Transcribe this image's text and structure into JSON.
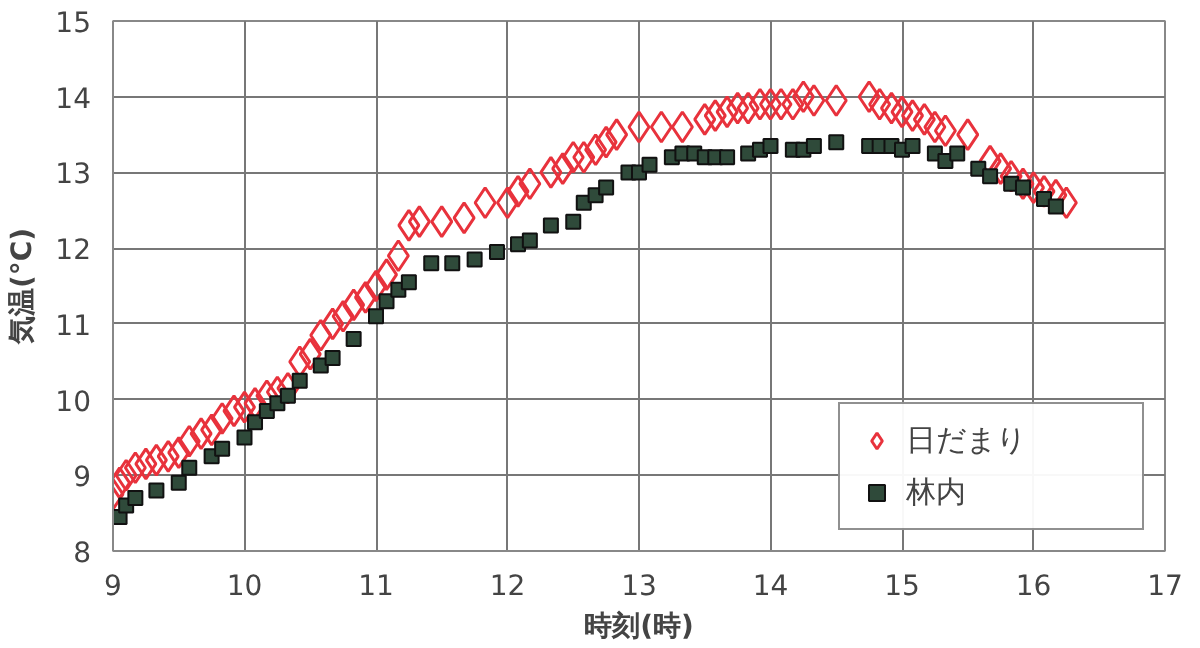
{
  "chart_data": {
    "type": "scatter",
    "xlabel": "時刻(時)",
    "ylabel": "気温(°C)",
    "xlim": [
      9,
      17
    ],
    "xticks": [
      9,
      10,
      11,
      12,
      13,
      14,
      15,
      16,
      17
    ],
    "ylim": [
      8,
      15
    ],
    "yticks": [
      8,
      9,
      10,
      11,
      12,
      13,
      14,
      15
    ],
    "grid": true,
    "legend": "bottom right",
    "series": [
      {
        "name": "日だまり",
        "color": "#e8323c",
        "marker": "diamond",
        "x": [
          9.0,
          9.05,
          9.1,
          9.17,
          9.25,
          9.33,
          9.42,
          9.5,
          9.58,
          9.67,
          9.75,
          9.83,
          9.92,
          10.0,
          10.08,
          10.17,
          10.25,
          10.33,
          10.42,
          10.5,
          10.58,
          10.67,
          10.75,
          10.83,
          10.92,
          11.0,
          11.08,
          11.17,
          11.25,
          11.33,
          11.5,
          11.67,
          11.83,
          12.0,
          12.08,
          12.17,
          12.33,
          12.42,
          12.5,
          12.58,
          12.67,
          12.75,
          12.83,
          13.0,
          13.17,
          13.33,
          13.5,
          13.58,
          13.67,
          13.75,
          13.83,
          13.92,
          14.0,
          14.08,
          14.17,
          14.25,
          14.33,
          14.5,
          14.75,
          14.83,
          14.92,
          15.0,
          15.08,
          15.17,
          15.25,
          15.33,
          15.5,
          15.67,
          15.75,
          15.83,
          15.92,
          16.0,
          16.08,
          16.17,
          16.25
        ],
        "values": [
          8.75,
          8.9,
          9.0,
          9.1,
          9.15,
          9.2,
          9.25,
          9.3,
          9.45,
          9.55,
          9.6,
          9.75,
          9.85,
          9.9,
          9.95,
          10.05,
          10.1,
          10.15,
          10.5,
          10.6,
          10.85,
          11.0,
          11.1,
          11.25,
          11.35,
          11.5,
          11.65,
          11.9,
          12.3,
          12.35,
          12.35,
          12.4,
          12.6,
          12.6,
          12.75,
          12.85,
          13.0,
          13.05,
          13.2,
          13.2,
          13.3,
          13.4,
          13.5,
          13.6,
          13.6,
          13.6,
          13.7,
          13.75,
          13.8,
          13.85,
          13.85,
          13.9,
          13.9,
          13.9,
          13.9,
          14.0,
          13.95,
          13.95,
          14.0,
          13.9,
          13.85,
          13.8,
          13.75,
          13.7,
          13.6,
          13.55,
          13.5,
          13.15,
          13.05,
          12.95,
          12.85,
          12.8,
          12.75,
          12.7,
          12.6
        ]
      },
      {
        "name": "林内",
        "color": "#2f4a3a",
        "marker": "square",
        "x": [
          9.05,
          9.1,
          9.17,
          9.33,
          9.5,
          9.58,
          9.75,
          9.83,
          10.0,
          10.08,
          10.17,
          10.25,
          10.33,
          10.42,
          10.58,
          10.67,
          10.83,
          11.0,
          11.08,
          11.17,
          11.25,
          11.42,
          11.58,
          11.75,
          11.92,
          12.08,
          12.17,
          12.33,
          12.5,
          12.58,
          12.67,
          12.75,
          12.92,
          13.0,
          13.08,
          13.25,
          13.33,
          13.42,
          13.5,
          13.58,
          13.67,
          13.83,
          13.92,
          14.0,
          14.17,
          14.25,
          14.33,
          14.5,
          14.75,
          14.83,
          14.92,
          15.0,
          15.08,
          15.25,
          15.33,
          15.42,
          15.58,
          15.67,
          15.83,
          15.92,
          16.08,
          16.17
        ],
        "values": [
          8.45,
          8.6,
          8.7,
          8.8,
          8.9,
          9.1,
          9.25,
          9.35,
          9.5,
          9.7,
          9.85,
          9.95,
          10.05,
          10.25,
          10.45,
          10.55,
          10.8,
          11.1,
          11.3,
          11.45,
          11.55,
          11.8,
          11.8,
          11.85,
          11.95,
          12.05,
          12.1,
          12.3,
          12.35,
          12.6,
          12.7,
          12.8,
          13.0,
          13.0,
          13.1,
          13.2,
          13.25,
          13.25,
          13.2,
          13.2,
          13.2,
          13.25,
          13.3,
          13.35,
          13.3,
          13.3,
          13.35,
          13.4,
          13.35,
          13.35,
          13.35,
          13.3,
          13.35,
          13.25,
          13.15,
          13.25,
          13.05,
          12.95,
          12.85,
          12.8,
          12.65,
          12.55
        ]
      }
    ]
  }
}
